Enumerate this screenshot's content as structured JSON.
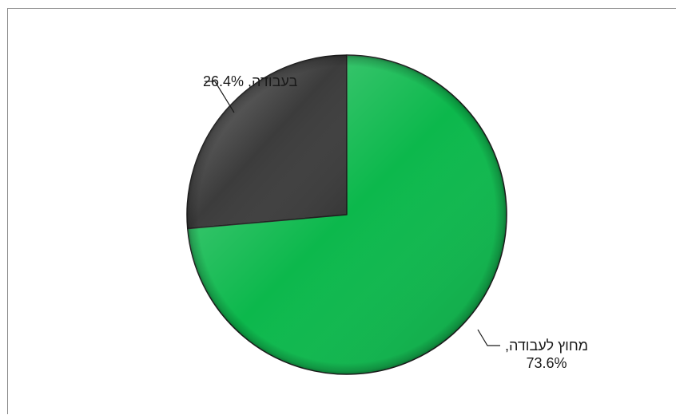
{
  "chart_data": {
    "type": "pie",
    "title": "",
    "slices": [
      {
        "label": "בעבודה",
        "value": 26.4,
        "display": "בעבודה, 26.4%",
        "color": "#3c3c3c"
      },
      {
        "label": "מחוץ לעבודה",
        "value": 73.6,
        "display_line1": "מחוץ לעבודה,",
        "display_line2": "73.6%",
        "color": "#0cb84c"
      }
    ],
    "start_angle": "12 o'clock",
    "direction": "counter-clockwise",
    "legend": "none",
    "style": "3d-bevel"
  }
}
